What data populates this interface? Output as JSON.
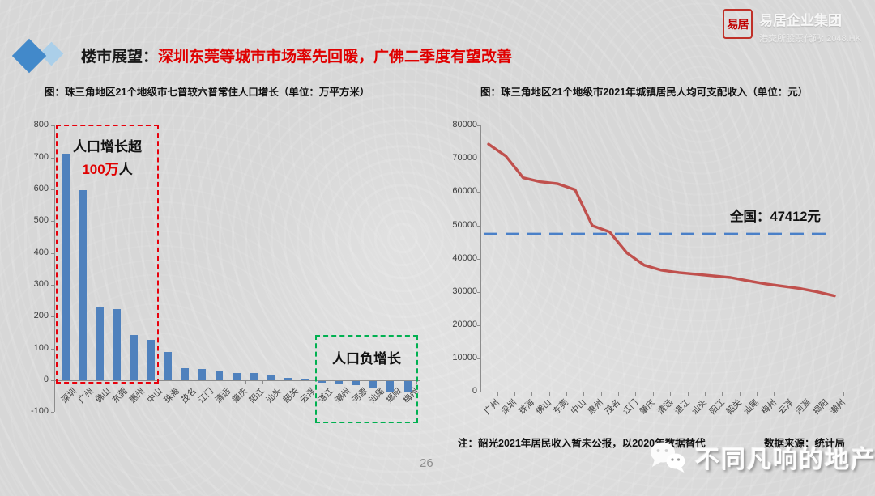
{
  "header": {
    "title_prefix": "楼市展望：",
    "title_highlight": "深圳东莞等城市市场率先回暖，广佛二季度有望改善"
  },
  "logo": {
    "seal": "易居",
    "company_name": "易居企业集团",
    "stock_code": "港交所股票代码: 2048.HK"
  },
  "footer": {
    "note": "注：韶光2021年居民收入暂未公报，以2020年数据替代",
    "source": "数据来源：统计局",
    "page_number": "26",
    "watermark_text": "不同凡响的地产",
    "watermark_icon": "wechat-icon"
  },
  "colors": {
    "bar_blue": "#4f81bd",
    "line_red": "#c0504d",
    "national_blue": "#4a80c8",
    "growth_box_red": "#e8000b",
    "negative_box_green": "#00b050",
    "title_red": "#e00000",
    "diamond_dark": "#4289ca",
    "diamond_light": "#abcfe9",
    "axis_gray": "#8c8c8c"
  },
  "chart_data": [
    {
      "type": "bar",
      "title": "图：珠三角地区21个地级市七普较六普常住人口增长（单位：万平方米）",
      "categories": [
        "深圳",
        "广州",
        "佛山",
        "东莞",
        "惠州",
        "中山",
        "珠海",
        "茂名",
        "江门",
        "清远",
        "肇庆",
        "阳江",
        "汕头",
        "韶关",
        "云浮",
        "湛江",
        "潮州",
        "河源",
        "汕尾",
        "揭阳",
        "梅州"
      ],
      "values": [
        712,
        597,
        228,
        224,
        143,
        128,
        88,
        37,
        36,
        27,
        23,
        22,
        15,
        7,
        5,
        -4,
        -11,
        -12,
        -21,
        -33,
        -36
      ],
      "xlabel": "",
      "ylabel": "",
      "ylim": [
        -100,
        800
      ],
      "ytick_step": 100,
      "grid": false,
      "legend": "none",
      "bar_color": "#4f81bd",
      "annotations": [
        {
          "style": "red-dashed-box",
          "covers": "深圳—中山",
          "line1": "人口增长超",
          "value_red": "100万",
          "suffix": "人"
        },
        {
          "style": "green-dashed-box",
          "covers": "湛江—梅州",
          "label": "人口负增长"
        }
      ]
    },
    {
      "type": "line",
      "title": "图：珠三角地区21个地级市2021年城镇居民人均可支配收入（单位：元）",
      "categories": [
        "广州",
        "深圳",
        "珠海",
        "佛山",
        "东莞",
        "中山",
        "惠州",
        "茂名",
        "江门",
        "肇庆",
        "清远",
        "湛江",
        "汕头",
        "阳江",
        "韶关",
        "汕尾",
        "梅州",
        "云浮",
        "河源",
        "揭阳",
        "潮州"
      ],
      "values": [
        74400,
        70800,
        64300,
        63100,
        62500,
        60700,
        49900,
        48000,
        41700,
        38000,
        36500,
        35800,
        35300,
        34800,
        34300,
        33300,
        32400,
        31700,
        31000,
        30000,
        28800
      ],
      "xlabel": "",
      "ylabel": "",
      "ylim": [
        0,
        80000
      ],
      "ytick_step": 10000,
      "grid": false,
      "legend": "none",
      "line_color": "#c0504d",
      "reference_line": {
        "value": 47412,
        "label": "全国：47412元",
        "color": "#4a80c8",
        "style": "dashed"
      }
    }
  ]
}
